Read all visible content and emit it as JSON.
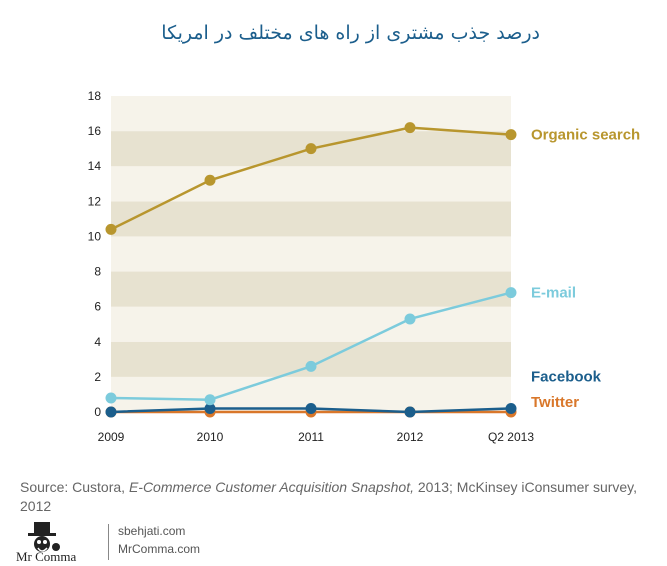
{
  "title": "درصد جذب مشتری از راه های مختلف در امریکا",
  "chart_data": {
    "type": "line",
    "categories": [
      "2009",
      "2010",
      "2011",
      "2012",
      "Q2 2013"
    ],
    "ylim": [
      0,
      18
    ],
    "yticks": [
      0,
      2,
      4,
      6,
      8,
      10,
      12,
      14,
      16,
      18
    ],
    "grid": "alternating horizontal bands",
    "series": [
      {
        "name": "Organic search",
        "color": "#b8962e",
        "values": [
          10.4,
          13.2,
          15.0,
          16.2,
          15.8
        ]
      },
      {
        "name": "E-mail",
        "color": "#7ccbdc",
        "values": [
          0.8,
          0.7,
          2.6,
          5.3,
          6.8
        ]
      },
      {
        "name": "Facebook",
        "color": "#1b5e8c",
        "values": [
          0.0,
          0.2,
          0.2,
          0.0,
          0.2
        ]
      },
      {
        "name": "Twitter",
        "color": "#d9772a",
        "values": [
          0.0,
          0.0,
          0.0,
          0.0,
          0.0
        ]
      }
    ]
  },
  "source": {
    "prefix": "Source: Custora, ",
    "italic": "E-Commerce Customer Acquisition Snapshot,",
    "suffix": " 2013; McKinsey iConsumer survey, 2012"
  },
  "logo": {
    "brand": "Mr Comma",
    "site1": "sbehjati.com",
    "site2": "MrComma.com"
  }
}
